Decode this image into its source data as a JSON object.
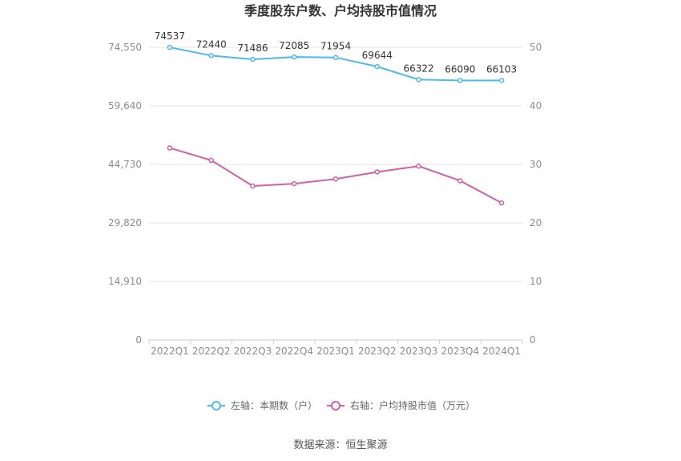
{
  "chart_data": {
    "type": "line",
    "title": "季度股东户数、户均持股市值情况",
    "categories": [
      "2022Q1",
      "2022Q2",
      "2022Q3",
      "2022Q4",
      "2023Q1",
      "2023Q2",
      "2023Q3",
      "2023Q4",
      "2024Q1"
    ],
    "left_axis": {
      "ylim": [
        0,
        74550
      ],
      "ticks": [
        "0",
        "14,910",
        "29,820",
        "44,730",
        "59,640",
        "74,550"
      ],
      "tick_values": [
        0,
        14910,
        29820,
        44730,
        59640,
        74550
      ]
    },
    "right_axis": {
      "ylim": [
        0,
        50
      ],
      "ticks": [
        "0",
        "10",
        "20",
        "30",
        "40",
        "50"
      ],
      "tick_values": [
        0,
        10,
        20,
        30,
        40,
        50
      ]
    },
    "series": [
      {
        "name": "左轴：本期数（户）",
        "axis": "left",
        "color": "#4fb8ec",
        "values": [
          74537,
          72440,
          71486,
          72085,
          71954,
          69644,
          66322,
          66090,
          66103
        ],
        "labels": [
          "74537",
          "72440",
          "71486",
          "72085",
          "71954",
          "69644",
          "66322",
          "66090",
          "66103"
        ]
      },
      {
        "name": "右轴：户均持股市值（万元）",
        "axis": "right",
        "color": "#d05fa8",
        "values": [
          32.8,
          30.7,
          26.3,
          26.7,
          27.5,
          28.7,
          29.7,
          27.2,
          23.4
        ]
      }
    ],
    "grid": true,
    "legend_position": "bottom"
  },
  "source_text": "数据来源：恒生聚源"
}
